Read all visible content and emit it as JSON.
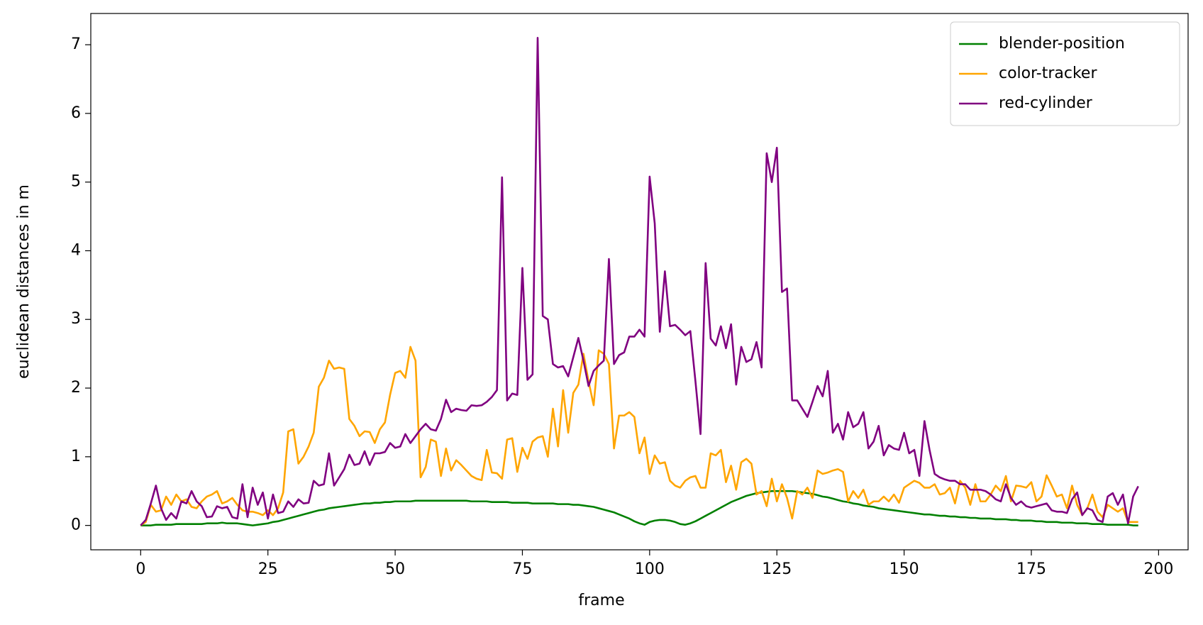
{
  "chart_data": {
    "type": "line",
    "x_label": "frame",
    "y_label": "euclidean distances in m",
    "x": [
      0,
      1,
      2,
      3,
      4,
      5,
      6,
      7,
      8,
      9,
      10,
      11,
      12,
      13,
      14,
      15,
      16,
      17,
      18,
      19,
      20,
      21,
      22,
      23,
      24,
      25,
      26,
      27,
      28,
      29,
      30,
      31,
      32,
      33,
      34,
      35,
      36,
      37,
      38,
      39,
      40,
      41,
      42,
      43,
      44,
      45,
      46,
      47,
      48,
      49,
      50,
      51,
      52,
      53,
      54,
      55,
      56,
      57,
      58,
      59,
      60,
      61,
      62,
      63,
      64,
      65,
      66,
      67,
      68,
      69,
      70,
      71,
      72,
      73,
      74,
      75,
      76,
      77,
      78,
      79,
      80,
      81,
      82,
      83,
      84,
      85,
      86,
      87,
      88,
      89,
      90,
      91,
      92,
      93,
      94,
      95,
      96,
      97,
      98,
      99,
      100,
      101,
      102,
      103,
      104,
      105,
      106,
      107,
      108,
      109,
      110,
      111,
      112,
      113,
      114,
      115,
      116,
      117,
      118,
      119,
      120,
      121,
      122,
      123,
      124,
      125,
      126,
      127,
      128,
      129,
      130,
      131,
      132,
      133,
      134,
      135,
      136,
      137,
      138,
      139,
      140,
      141,
      142,
      143,
      144,
      145,
      146,
      147,
      148,
      149,
      150,
      151,
      152,
      153,
      154,
      155,
      156,
      157,
      158,
      159,
      160,
      161,
      162,
      163,
      164,
      165,
      166,
      167,
      168,
      169,
      170,
      171,
      172,
      173,
      174,
      175,
      176,
      177,
      178,
      179,
      180,
      181,
      182,
      183,
      184,
      185,
      186,
      187,
      188,
      189,
      190,
      191,
      192,
      193,
      194,
      195,
      196
    ],
    "series": [
      {
        "name": "blender-position",
        "color": "#008000",
        "values": [
          0,
          0,
          0,
          0.01,
          0.01,
          0.01,
          0.01,
          0.02,
          0.02,
          0.02,
          0.02,
          0.02,
          0.02,
          0.03,
          0.03,
          0.03,
          0.04,
          0.03,
          0.03,
          0.03,
          0.02,
          0.01,
          0,
          0.01,
          0.02,
          0.03,
          0.05,
          0.06,
          0.08,
          0.1,
          0.12,
          0.14,
          0.16,
          0.18,
          0.2,
          0.22,
          0.23,
          0.25,
          0.26,
          0.27,
          0.28,
          0.29,
          0.3,
          0.31,
          0.32,
          0.32,
          0.33,
          0.33,
          0.34,
          0.34,
          0.35,
          0.35,
          0.35,
          0.35,
          0.36,
          0.36,
          0.36,
          0.36,
          0.36,
          0.36,
          0.36,
          0.36,
          0.36,
          0.36,
          0.36,
          0.35,
          0.35,
          0.35,
          0.35,
          0.34,
          0.34,
          0.34,
          0.34,
          0.33,
          0.33,
          0.33,
          0.33,
          0.32,
          0.32,
          0.32,
          0.32,
          0.32,
          0.31,
          0.31,
          0.31,
          0.3,
          0.3,
          0.29,
          0.28,
          0.27,
          0.25,
          0.23,
          0.21,
          0.19,
          0.16,
          0.13,
          0.1,
          0.06,
          0.03,
          0.01,
          0.05,
          0.07,
          0.08,
          0.08,
          0.07,
          0.05,
          0.02,
          0.01,
          0.03,
          0.06,
          0.1,
          0.14,
          0.18,
          0.22,
          0.26,
          0.3,
          0.34,
          0.37,
          0.4,
          0.43,
          0.45,
          0.47,
          0.48,
          0.49,
          0.5,
          0.5,
          0.5,
          0.5,
          0.5,
          0.49,
          0.48,
          0.47,
          0.46,
          0.44,
          0.42,
          0.41,
          0.39,
          0.37,
          0.35,
          0.34,
          0.32,
          0.31,
          0.29,
          0.28,
          0.27,
          0.25,
          0.24,
          0.23,
          0.22,
          0.21,
          0.2,
          0.19,
          0.18,
          0.17,
          0.16,
          0.16,
          0.15,
          0.14,
          0.14,
          0.13,
          0.13,
          0.12,
          0.12,
          0.11,
          0.11,
          0.1,
          0.1,
          0.1,
          0.09,
          0.09,
          0.09,
          0.08,
          0.08,
          0.07,
          0.07,
          0.07,
          0.06,
          0.06,
          0.05,
          0.05,
          0.05,
          0.04,
          0.04,
          0.04,
          0.03,
          0.03,
          0.03,
          0.02,
          0.02,
          0.02,
          0.01,
          0.01,
          0.01,
          0.01,
          0.01,
          0,
          0
        ]
      },
      {
        "name": "color-tracker",
        "color": "#ffa500",
        "values": [
          0,
          0.05,
          0.3,
          0.2,
          0.22,
          0.42,
          0.3,
          0.45,
          0.35,
          0.38,
          0.27,
          0.25,
          0.35,
          0.42,
          0.45,
          0.5,
          0.32,
          0.35,
          0.4,
          0.3,
          0.22,
          0.2,
          0.2,
          0.18,
          0.15,
          0.22,
          0.15,
          0.25,
          0.48,
          1.37,
          1.4,
          0.9,
          1.0,
          1.15,
          1.35,
          2.02,
          2.15,
          2.4,
          2.28,
          2.3,
          2.28,
          1.55,
          1.45,
          1.3,
          1.37,
          1.36,
          1.2,
          1.4,
          1.5,
          1.9,
          2.22,
          2.25,
          2.15,
          2.6,
          2.4,
          0.7,
          0.85,
          1.25,
          1.22,
          0.72,
          1.12,
          0.8,
          0.95,
          0.88,
          0.8,
          0.72,
          0.68,
          0.66,
          1.1,
          0.77,
          0.76,
          0.68,
          1.25,
          1.27,
          0.78,
          1.13,
          0.97,
          1.22,
          1.28,
          1.3,
          1.0,
          1.7,
          1.15,
          1.97,
          1.35,
          1.93,
          2.05,
          2.5,
          2.1,
          1.75,
          2.55,
          2.5,
          2.35,
          1.12,
          1.6,
          1.6,
          1.65,
          1.58,
          1.05,
          1.28,
          0.75,
          1.02,
          0.9,
          0.92,
          0.65,
          0.58,
          0.55,
          0.65,
          0.7,
          0.72,
          0.55,
          0.55,
          1.05,
          1.02,
          1.1,
          0.63,
          0.87,
          0.52,
          0.92,
          0.97,
          0.9,
          0.45,
          0.5,
          0.28,
          0.68,
          0.35,
          0.6,
          0.4,
          0.1,
          0.5,
          0.45,
          0.55,
          0.4,
          0.8,
          0.75,
          0.77,
          0.8,
          0.82,
          0.78,
          0.35,
          0.5,
          0.4,
          0.52,
          0.3,
          0.35,
          0.35,
          0.42,
          0.35,
          0.45,
          0.33,
          0.55,
          0.6,
          0.65,
          0.62,
          0.55,
          0.55,
          0.6,
          0.45,
          0.47,
          0.55,
          0.32,
          0.65,
          0.55,
          0.3,
          0.6,
          0.35,
          0.35,
          0.45,
          0.58,
          0.5,
          0.72,
          0.35,
          0.58,
          0.57,
          0.55,
          0.63,
          0.35,
          0.42,
          0.73,
          0.58,
          0.42,
          0.45,
          0.25,
          0.58,
          0.3,
          0.15,
          0.25,
          0.45,
          0.2,
          0.12,
          0.3,
          0.25,
          0.2,
          0.25,
          0.05,
          0.05,
          0.05
        ]
      },
      {
        "name": "red-cylinder",
        "color": "#800080",
        "values": [
          0,
          0.08,
          0.32,
          0.58,
          0.25,
          0.08,
          0.18,
          0.1,
          0.35,
          0.32,
          0.5,
          0.35,
          0.28,
          0.12,
          0.13,
          0.28,
          0.25,
          0.27,
          0.12,
          0.1,
          0.6,
          0.12,
          0.55,
          0.3,
          0.48,
          0.1,
          0.45,
          0.18,
          0.2,
          0.35,
          0.27,
          0.38,
          0.32,
          0.33,
          0.65,
          0.58,
          0.6,
          1.05,
          0.58,
          0.7,
          0.82,
          1.03,
          0.88,
          0.9,
          1.08,
          0.88,
          1.05,
          1.05,
          1.07,
          1.2,
          1.13,
          1.15,
          1.33,
          1.2,
          1.3,
          1.4,
          1.48,
          1.4,
          1.38,
          1.55,
          1.83,
          1.65,
          1.7,
          1.68,
          1.67,
          1.75,
          1.74,
          1.75,
          1.8,
          1.87,
          1.97,
          5.07,
          1.82,
          1.92,
          1.9,
          3.75,
          2.12,
          2.2,
          7.1,
          3.05,
          3.0,
          2.35,
          2.3,
          2.32,
          2.17,
          2.45,
          2.73,
          2.4,
          2.03,
          2.25,
          2.33,
          2.4,
          3.88,
          2.35,
          2.48,
          2.52,
          2.75,
          2.75,
          2.85,
          2.75,
          5.08,
          4.4,
          2.82,
          3.7,
          2.9,
          2.92,
          2.85,
          2.77,
          2.83,
          2.1,
          1.33,
          3.82,
          2.72,
          2.62,
          2.9,
          2.58,
          2.93,
          2.05,
          2.6,
          2.38,
          2.42,
          2.67,
          2.3,
          5.42,
          5.0,
          5.5,
          3.4,
          3.45,
          1.82,
          1.82,
          1.7,
          1.58,
          1.8,
          2.03,
          1.88,
          2.25,
          1.35,
          1.48,
          1.25,
          1.65,
          1.43,
          1.48,
          1.65,
          1.12,
          1.22,
          1.45,
          1.02,
          1.17,
          1.12,
          1.1,
          1.35,
          1.05,
          1.1,
          0.72,
          1.52,
          1.1,
          0.75,
          0.7,
          0.67,
          0.65,
          0.65,
          0.6,
          0.6,
          0.52,
          0.52,
          0.52,
          0.5,
          0.45,
          0.38,
          0.35,
          0.6,
          0.4,
          0.3,
          0.35,
          0.28,
          0.26,
          0.28,
          0.3,
          0.32,
          0.22,
          0.2,
          0.2,
          0.18,
          0.38,
          0.48,
          0.15,
          0.25,
          0.22,
          0.08,
          0.05,
          0.42,
          0.47,
          0.3,
          0.45,
          0.03,
          0.42,
          0.57
        ]
      }
    ],
    "xlim": [
      -9.8,
      205.8
    ],
    "ylim": [
      -0.355,
      7.455
    ],
    "xticks": [
      0,
      25,
      50,
      75,
      100,
      125,
      150,
      175,
      200
    ],
    "yticks": [
      0,
      1,
      2,
      3,
      4,
      5,
      6,
      7
    ],
    "grid": false,
    "legend": "upper right"
  }
}
